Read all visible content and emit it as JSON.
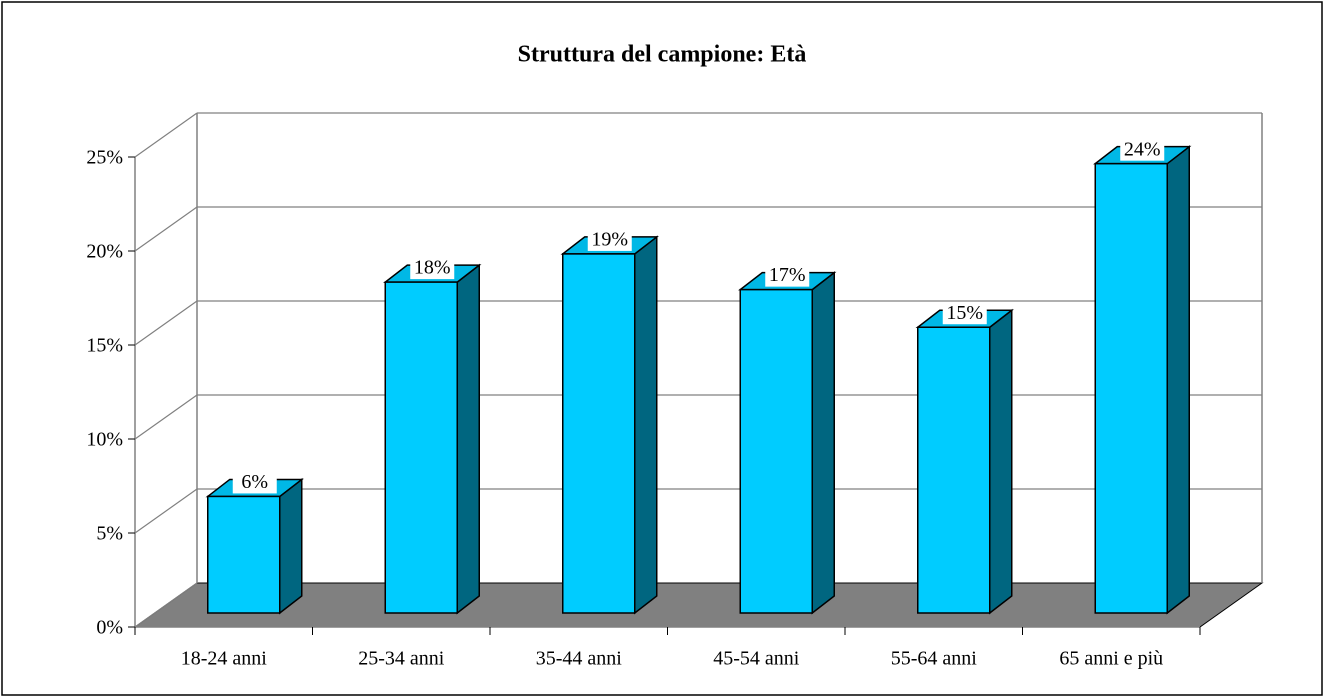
{
  "chart_data": {
    "type": "bar3d",
    "title": "Struttura del campione: Età",
    "categories": [
      "18-24 anni",
      "25-34 anni",
      "35-44 anni",
      "45-54 anni",
      "55-64 anni",
      "65 anni e più"
    ],
    "values": [
      6.2,
      17.6,
      19.1,
      17.2,
      15.2,
      23.9
    ],
    "value_labels": [
      "6%",
      "18%",
      "19%",
      "17%",
      "15%",
      "24%"
    ],
    "color": "#00ccff",
    "ylim": [
      0,
      25
    ],
    "yticks": [
      {
        "value": 0,
        "label": "0%"
      },
      {
        "value": 5,
        "label": "5%"
      },
      {
        "value": 10,
        "label": "10%"
      },
      {
        "value": 15,
        "label": "15%"
      },
      {
        "value": 20,
        "label": "20%"
      },
      {
        "value": 25,
        "label": "25%"
      }
    ],
    "grid": true
  }
}
